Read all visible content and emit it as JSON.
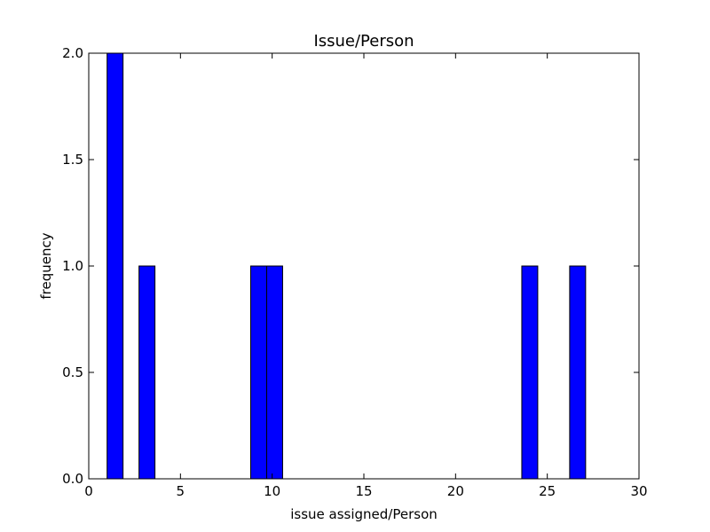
{
  "chart_data": {
    "type": "bar",
    "title": "Issue/Person",
    "xlabel": "issue assigned/Person",
    "ylabel": "frequency",
    "xlim": [
      0,
      30
    ],
    "ylim": [
      0,
      2.0
    ],
    "x_ticks": [
      "0",
      "5",
      "10",
      "15",
      "20",
      "25",
      "30"
    ],
    "y_ticks": [
      "0.0",
      "0.5",
      "1.0",
      "1.5",
      "2.0"
    ],
    "bins": [
      {
        "x_start": 1.0,
        "x_end": 1.87,
        "value": 2
      },
      {
        "x_start": 2.74,
        "x_end": 3.61,
        "value": 1
      },
      {
        "x_start": 8.83,
        "x_end": 9.7,
        "value": 1
      },
      {
        "x_start": 9.7,
        "x_end": 10.57,
        "value": 1
      },
      {
        "x_start": 23.61,
        "x_end": 24.48,
        "value": 1
      },
      {
        "x_start": 26.22,
        "x_end": 27.09,
        "value": 1
      }
    ],
    "grid": false,
    "colors": {
      "bar": "#0000ff",
      "edge": "#000000"
    }
  }
}
